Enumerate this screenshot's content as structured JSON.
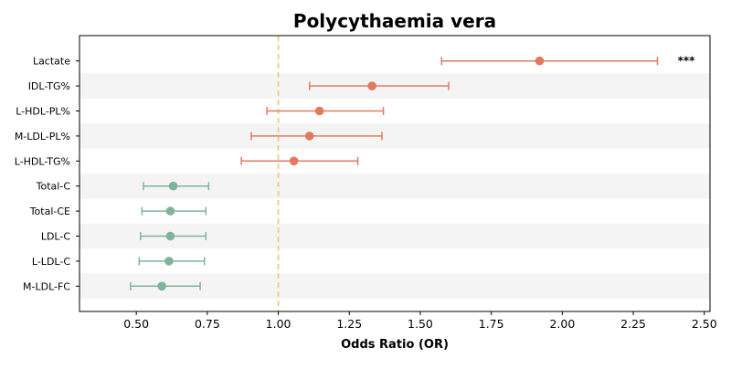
{
  "chart_data": {
    "type": "forest",
    "title": "Polycythaemia vera",
    "xlabel": "Odds Ratio (OR)",
    "ylabel": "",
    "xlim": [
      0.3,
      2.52
    ],
    "xticks": [
      0.5,
      0.75,
      1.0,
      1.25,
      1.5,
      1.75,
      2.0,
      2.25,
      2.5
    ],
    "xtick_labels": [
      "0.50",
      "0.75",
      "1.00",
      "1.25",
      "1.50",
      "1.75",
      "2.00",
      "2.25",
      "2.50"
    ],
    "reference_line": 1.0,
    "grid": false,
    "colors": {
      "increased": "#E07B5F",
      "decreased": "#80B39A",
      "reference": "#F5C57A",
      "band": "#F4F4F4"
    },
    "rows": [
      {
        "label": "Lactate",
        "or": 1.92,
        "lo": 1.575,
        "hi": 2.335,
        "group": "increased",
        "annotation": "***"
      },
      {
        "label": "IDL-TG%",
        "or": 1.33,
        "lo": 1.11,
        "hi": 1.6,
        "group": "increased",
        "annotation": ""
      },
      {
        "label": "L-HDL-PL%",
        "or": 1.145,
        "lo": 0.96,
        "hi": 1.37,
        "group": "increased",
        "annotation": ""
      },
      {
        "label": "M-LDL-PL%",
        "or": 1.11,
        "lo": 0.905,
        "hi": 1.365,
        "group": "increased",
        "annotation": ""
      },
      {
        "label": "L-HDL-TG%",
        "or": 1.055,
        "lo": 0.87,
        "hi": 1.28,
        "group": "increased",
        "annotation": ""
      },
      {
        "label": "Total-C",
        "or": 0.63,
        "lo": 0.525,
        "hi": 0.755,
        "group": "decreased",
        "annotation": ""
      },
      {
        "label": "Total-CE",
        "or": 0.62,
        "lo": 0.52,
        "hi": 0.745,
        "group": "decreased",
        "annotation": ""
      },
      {
        "label": "LDL-C",
        "or": 0.62,
        "lo": 0.515,
        "hi": 0.745,
        "group": "decreased",
        "annotation": ""
      },
      {
        "label": "L-LDL-C",
        "or": 0.615,
        "lo": 0.51,
        "hi": 0.74,
        "group": "decreased",
        "annotation": ""
      },
      {
        "label": "M-LDL-FC",
        "or": 0.59,
        "lo": 0.48,
        "hi": 0.725,
        "group": "decreased",
        "annotation": ""
      }
    ]
  }
}
